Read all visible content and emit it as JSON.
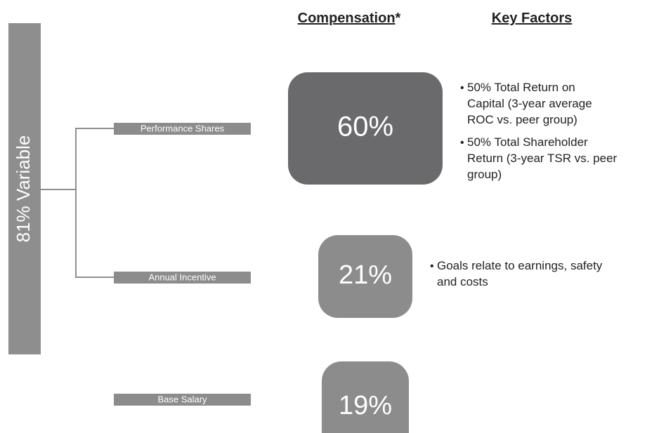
{
  "side_label": "81% Variable",
  "headers": {
    "compensation": "Compensation",
    "compensation_note": "*",
    "key_factors": "Key Factors"
  },
  "components": [
    {
      "label": "Performance Shares",
      "share": "60%",
      "factors": [
        [
          "50% Total Return on",
          "Capital (3-year average",
          "ROC vs. peer group)"
        ],
        [
          "50% Total Shareholder",
          "Return (3-year TSR vs. peer",
          "group)"
        ]
      ]
    },
    {
      "label": "Annual Incentive",
      "share": "21%",
      "factors": [
        [
          "Goals relate to earnings, safety",
          "and costs"
        ]
      ]
    },
    {
      "label": "Base Salary",
      "share": "19%",
      "factors": []
    }
  ]
}
